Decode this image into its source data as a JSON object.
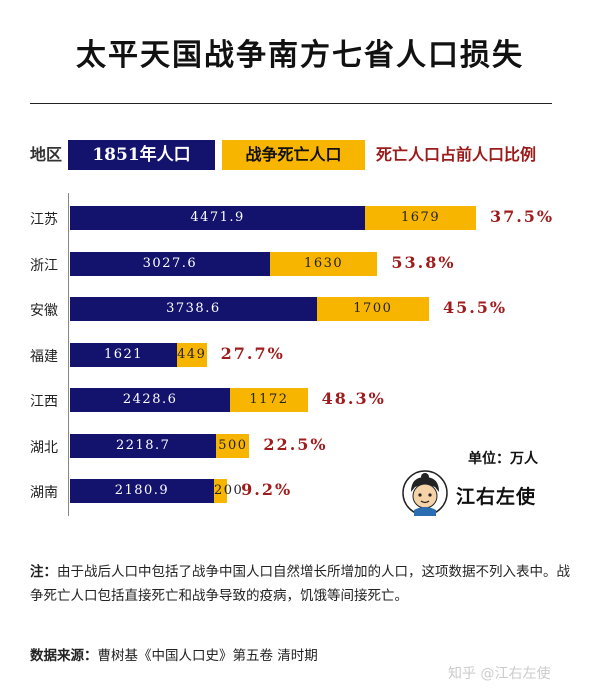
{
  "title": "太平天国战争南方七省人口损失",
  "headers": {
    "region": "地区",
    "population": "1851年人口",
    "deaths": "战争死亡人口",
    "ratio": "死亡人口占前人口比例"
  },
  "unit": "单位：万人",
  "brand": "江右左使",
  "note": {
    "label": "注：",
    "text": "由于战后人口中包括了战争中国人口自然增长所增加的人口，这项数据不列入表中。战争死亡人口包括直接死亡和战争导致的疫病，饥饿等间接死亡。"
  },
  "source": {
    "label": "数据来源：",
    "text": "曹树基《中国人口史》第五卷 清时期"
  },
  "watermark": "知乎 @江右左使",
  "colors": {
    "population": "#13136e",
    "deaths": "#f7b500",
    "ratio_text": "#a01c1c"
  },
  "chart_data": {
    "type": "bar",
    "orientation": "horizontal",
    "stacked": true,
    "categories": [
      "江苏",
      "浙江",
      "安徽",
      "福建",
      "江西",
      "湖北",
      "湖南"
    ],
    "series": [
      {
        "name": "1851年人口",
        "values": [
          "4471.9",
          "3027.6",
          "3738.6",
          "1621",
          "2428.6",
          "2218.7",
          "2180.9"
        ]
      },
      {
        "name": "战争死亡人口",
        "values": [
          "1679",
          "1630",
          "1700",
          "449",
          "1172",
          "500",
          "200"
        ]
      }
    ],
    "ratios": [
      "37.5%",
      "53.8%",
      "45.5%",
      "27.7%",
      "48.3%",
      "22.5%",
      "9.2%"
    ]
  }
}
